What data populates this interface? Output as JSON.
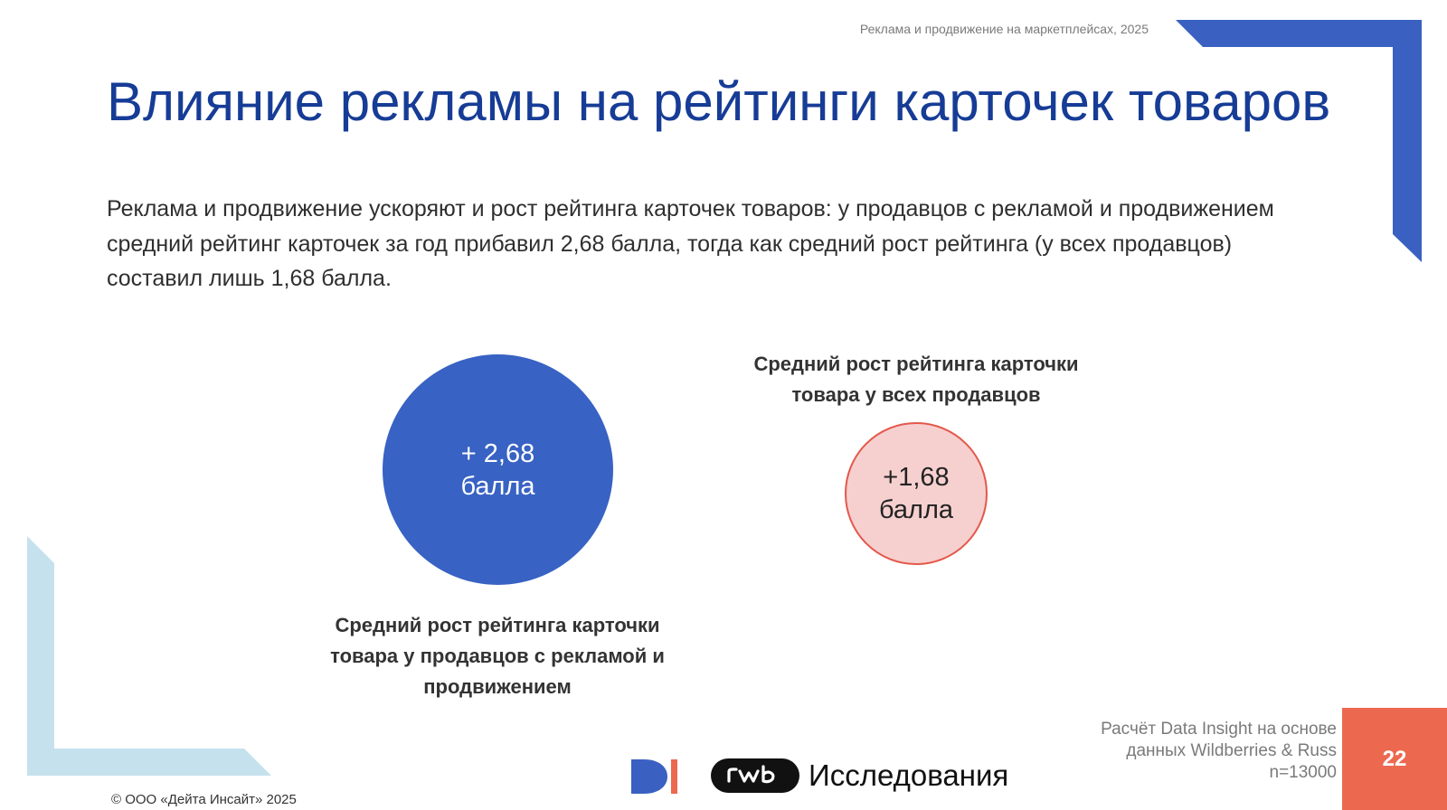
{
  "header": {
    "note": "Реклама и продвижение на маркетплейсах, 2025"
  },
  "title": "Влияние рекламы на рейтинги карточек товаров",
  "lead": "Реклама и продвижение ускоряют и рост рейтинга карточек товаров: у продавцов с рекламой и продвижением средний рейтинг карточек за год прибавил 2,68 балла, тогда как средний рост рейтинга (у всех продавцов) составил лишь 1,68 балла.",
  "metrics": {
    "ads": {
      "value": "+ 2,68",
      "unit": "балла",
      "caption": "Средний рост рейтинга карточки товара у продавцов с рекламой и продвижением"
    },
    "all": {
      "value": "+1,68",
      "unit": "балла",
      "caption": "Средний рост рейтинга карточки товара у всех продавцов"
    }
  },
  "source": {
    "line1": "Расчёт Data Insight на основе",
    "line2": "данных Wildberries & Russ",
    "line3": "n=13000"
  },
  "page_number": "22",
  "copyright": "© ООО «Дейта Инсайт» 2025",
  "logos": {
    "di": "DI",
    "rwb": "rwb",
    "research_text": "Исследования"
  },
  "colors": {
    "title": "#163c96",
    "accent_blue": "#3862c3",
    "accent_pink": "#f6d0cf",
    "accent_red": "#e4584b",
    "page_box": "#ec6950",
    "corner_light": "#c6e1ee"
  },
  "icons": {
    "top_right_corner": "blue-corner-bracket",
    "bottom_left_corner": "light-blue-corner-bracket"
  }
}
